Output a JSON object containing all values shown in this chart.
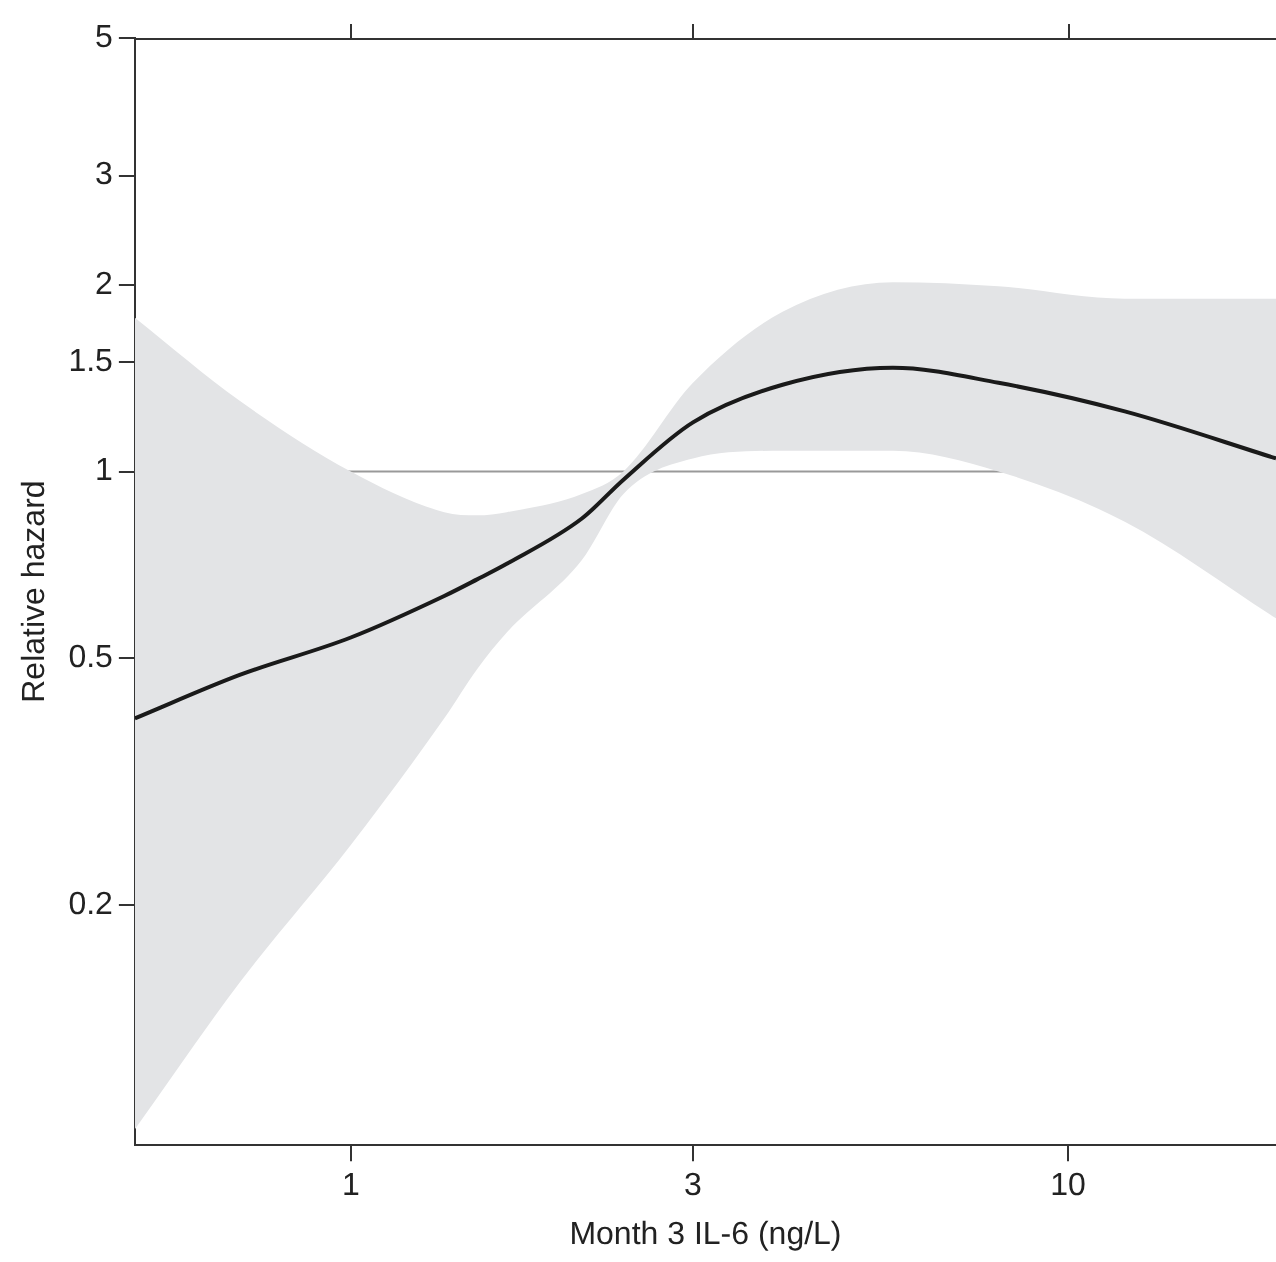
{
  "chart_data": {
    "type": "line",
    "xlabel": "Month 3 IL-6 (ng/L)",
    "ylabel": "Relative hazard",
    "x": [
      0.5,
      0.7,
      1,
      1.35,
      1.5,
      1.65,
      2.1,
      2.4,
      3,
      4,
      5.7,
      8,
      12,
      19.5
    ],
    "series": [
      {
        "color": "#1a1a1a",
        "values": [
          0.4,
          0.47,
          0.54,
          0.63,
          0.67,
          0.71,
          0.84,
          0.97,
          1.2,
          1.38,
          1.47,
          1.39,
          1.25,
          1.05
        ],
        "lower": [
          0.087,
          0.15,
          0.25,
          0.4,
          0.48,
          0.55,
          0.72,
          0.92,
          1.05,
          1.08,
          1.08,
          1.0,
          0.83,
          0.58
        ],
        "upper": [
          1.77,
          1.3,
          1.0,
          0.86,
          0.85,
          0.86,
          0.92,
          1.0,
          1.39,
          1.81,
          2.02,
          1.99,
          1.9,
          1.9
        ]
      }
    ],
    "log": "xy",
    "xlim": [
      0.5,
      19.5
    ],
    "ylim": [
      0.082,
      5
    ],
    "xticks": [
      1,
      3,
      10
    ],
    "yticks": [
      0.2,
      0.5,
      1,
      1.5,
      2,
      3,
      5
    ],
    "ref_lines": [
      {
        "axis": "y",
        "value": 1,
        "color": "#999999"
      }
    ],
    "grid": false,
    "legend": false,
    "line_style": "solid",
    "marker": "none"
  }
}
